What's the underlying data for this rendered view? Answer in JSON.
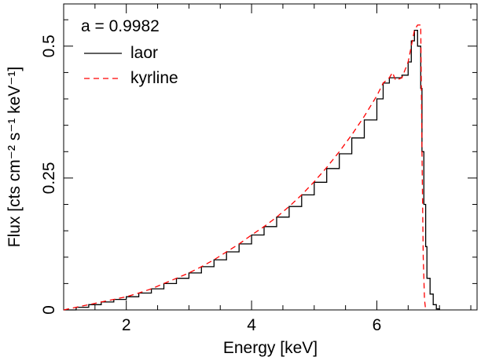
{
  "chart_data": {
    "type": "line",
    "title": "",
    "xlabel": "Energy [keV]",
    "ylabel": "Flux [cts cm⁻² s⁻¹ keV⁻¹]",
    "xlim": [
      1.0,
      7.6
    ],
    "ylim": [
      0,
      0.58
    ],
    "grid": false,
    "legend_position": "top-left",
    "annotation": "a = 0.9982",
    "x_ticks": [
      2,
      4,
      6
    ],
    "x_tick_labels": [
      "2",
      "4",
      "6"
    ],
    "y_ticks": [
      0,
      0.25,
      0.5
    ],
    "y_tick_labels": [
      "0",
      "0.25",
      "0.5"
    ],
    "series": [
      {
        "name": "laor",
        "color": "#000000",
        "style": "solid",
        "x": [
          1.0,
          1.2,
          1.4,
          1.6,
          1.8,
          2.0,
          2.2,
          2.4,
          2.6,
          2.8,
          3.0,
          3.2,
          3.4,
          3.6,
          3.8,
          4.0,
          4.2,
          4.4,
          4.6,
          4.8,
          5.0,
          5.2,
          5.4,
          5.6,
          5.8,
          6.0,
          6.1,
          6.2,
          6.3,
          6.4,
          6.5,
          6.55,
          6.6,
          6.65,
          6.7,
          6.72,
          6.75,
          6.78,
          6.8,
          6.85,
          6.9,
          6.95,
          7.0
        ],
        "y": [
          0.0,
          0.005,
          0.01,
          0.015,
          0.02,
          0.025,
          0.032,
          0.04,
          0.05,
          0.06,
          0.07,
          0.082,
          0.095,
          0.11,
          0.125,
          0.142,
          0.158,
          0.176,
          0.196,
          0.218,
          0.242,
          0.268,
          0.296,
          0.326,
          0.36,
          0.4,
          0.43,
          0.44,
          0.44,
          0.445,
          0.47,
          0.51,
          0.53,
          0.5,
          0.42,
          0.3,
          0.2,
          0.12,
          0.06,
          0.03,
          0.01,
          0.002,
          0.0
        ]
      },
      {
        "name": "kyrline",
        "color": "#ff0000",
        "style": "dashed",
        "x": [
          1.0,
          1.2,
          1.4,
          1.6,
          1.8,
          2.0,
          2.2,
          2.4,
          2.6,
          2.8,
          3.0,
          3.2,
          3.4,
          3.6,
          3.8,
          4.0,
          4.2,
          4.4,
          4.6,
          4.8,
          5.0,
          5.2,
          5.4,
          5.6,
          5.8,
          6.0,
          6.1,
          6.2,
          6.25,
          6.3,
          6.4,
          6.5,
          6.55,
          6.6,
          6.65,
          6.7,
          6.72,
          6.74,
          6.76,
          6.78
        ],
        "y": [
          0.0,
          0.005,
          0.01,
          0.015,
          0.02,
          0.025,
          0.032,
          0.04,
          0.05,
          0.06,
          0.07,
          0.082,
          0.095,
          0.11,
          0.125,
          0.142,
          0.158,
          0.176,
          0.196,
          0.218,
          0.243,
          0.27,
          0.3,
          0.332,
          0.367,
          0.406,
          0.43,
          0.44,
          0.45,
          0.435,
          0.44,
          0.47,
          0.5,
          0.53,
          0.54,
          0.54,
          0.3,
          0.1,
          0.02,
          0.0
        ]
      }
    ]
  }
}
